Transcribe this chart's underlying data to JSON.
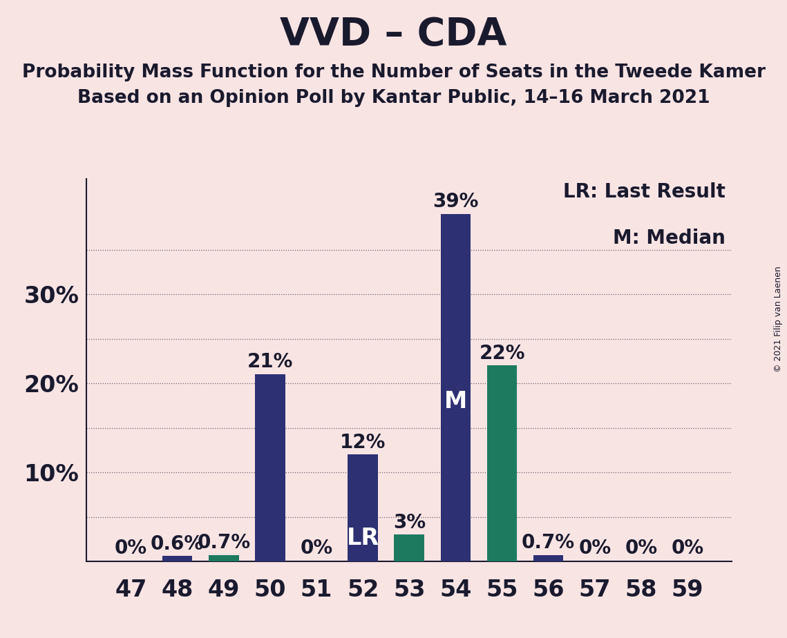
{
  "title": "VVD – CDA",
  "subtitle1": "Probability Mass Function for the Number of Seats in the Tweede Kamer",
  "subtitle2": "Based on an Opinion Poll by Kantar Public, 14–16 March 2021",
  "copyright": "© 2021 Filip van Laenen",
  "legend_lr": "LR: Last Result",
  "legend_m": "M: Median",
  "background_color": "#f9e4e4",
  "categories": [
    47,
    48,
    49,
    50,
    51,
    52,
    53,
    54,
    55,
    56,
    57,
    58,
    59
  ],
  "values": [
    0,
    0.6,
    0.7,
    21,
    0,
    12,
    3,
    39,
    22,
    0.7,
    0,
    0,
    0
  ],
  "bar_colors": [
    "#2d3072",
    "#2d3072",
    "#1d7a5f",
    "#2d3072",
    "#2d3072",
    "#2d3072",
    "#1d7a5f",
    "#2d3072",
    "#1d7a5f",
    "#2d3072",
    "#2d3072",
    "#2d3072",
    "#2d3072"
  ],
  "label_texts": [
    "0%",
    "0.6%",
    "0.7%",
    "21%",
    "0%",
    "12%",
    "3%",
    "39%",
    "22%",
    "0.7%",
    "0%",
    "0%",
    "0%"
  ],
  "lr_bar_index": 5,
  "median_bar_index": 7,
  "lr_label": "LR",
  "median_label": "M",
  "lr_label_color": "#ffffff",
  "median_label_color": "#ffffff",
  "ytick_major": [
    10,
    20,
    30
  ],
  "ytick_minor": [
    5,
    15,
    25,
    35
  ],
  "ytick_major_labels": [
    "10%",
    "20%",
    "30%"
  ],
  "ylim_max": 43,
  "grid_color": "#1a1a2e",
  "axis_color": "#1a1a2e",
  "title_color": "#1a1a2e",
  "title_fontsize": 40,
  "subtitle_fontsize": 19,
  "tick_fontsize": 24,
  "bar_label_fontsize": 20,
  "legend_fontsize": 20,
  "lr_m_fontsize": 24,
  "copyright_fontsize": 9
}
